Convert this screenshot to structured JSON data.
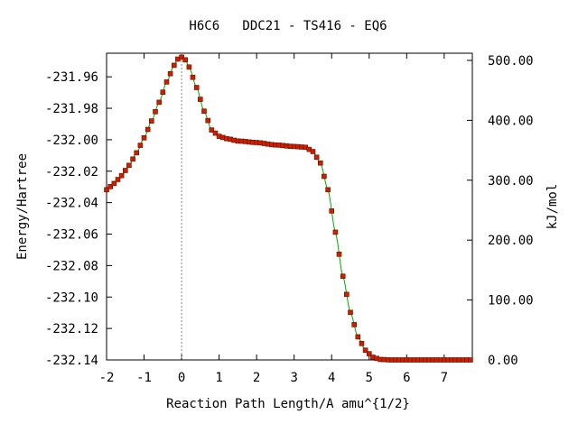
{
  "chart_data": {
    "type": "line",
    "title": "H6C6   DDC21 - TS416 - EQ6",
    "xlabel": "Reaction Path Length/A amu^{1/2}",
    "ylabel": "Energy/Hartree",
    "y2label": "kJ/mol",
    "xlim": [
      -2,
      7.75
    ],
    "ylim": [
      -232.14,
      -231.945
    ],
    "y2lim": [
      0,
      512
    ],
    "xticks": [
      "-2",
      "-1",
      "0",
      "1",
      "2",
      "3",
      "4",
      "5",
      "6",
      "7"
    ],
    "yticks": [
      "-231.96",
      "-231.98",
      "-232.00",
      "-232.02",
      "-232.04",
      "-232.06",
      "-232.08",
      "-232.10",
      "-232.12",
      "-232.14"
    ],
    "y2ticks": [
      "500.00",
      "400.00",
      "300.00",
      "200.00",
      "100.00",
      "0.00"
    ],
    "ts_marker_x": 0,
    "colors": {
      "line": "#00aa00",
      "points": "#cc1f00",
      "point_edge": "#661100",
      "marker": "#888888"
    },
    "series": [
      {
        "values": [
          [
            -2.0,
            -232.0318
          ],
          [
            -1.8,
            -232.0278
          ],
          [
            -1.6,
            -232.0228
          ],
          [
            -1.4,
            -232.0163
          ],
          [
            -1.2,
            -232.0083
          ],
          [
            -1.0,
            -231.9988
          ],
          [
            -0.8,
            -231.9881
          ],
          [
            -0.6,
            -231.9762
          ],
          [
            -0.4,
            -231.9633
          ],
          [
            -0.2,
            -231.9527
          ],
          [
            -0.1,
            -231.9487
          ],
          [
            0.0,
            -231.9475
          ],
          [
            0.1,
            -231.9492
          ],
          [
            0.2,
            -231.9538
          ],
          [
            0.4,
            -231.9668
          ],
          [
            0.6,
            -231.9818
          ],
          [
            0.8,
            -231.9938
          ],
          [
            1.0,
            -231.9978
          ],
          [
            1.2,
            -231.9993
          ],
          [
            1.5,
            -232.0008
          ],
          [
            2.0,
            -232.0018
          ],
          [
            2.5,
            -232.0033
          ],
          [
            3.0,
            -232.0043
          ],
          [
            3.3,
            -232.0048
          ],
          [
            3.5,
            -232.0075
          ],
          [
            3.7,
            -232.0148
          ],
          [
            3.9,
            -232.0318
          ],
          [
            4.1,
            -232.0588
          ],
          [
            4.3,
            -232.0868
          ],
          [
            4.5,
            -232.1098
          ],
          [
            4.7,
            -232.1253
          ],
          [
            4.9,
            -232.1338
          ],
          [
            5.1,
            -232.1383
          ],
          [
            5.3,
            -232.1397
          ],
          [
            5.6,
            -232.14
          ],
          [
            6.0,
            -232.14
          ],
          [
            7.0,
            -232.14
          ],
          [
            7.75,
            -232.14
          ]
        ]
      }
    ]
  }
}
